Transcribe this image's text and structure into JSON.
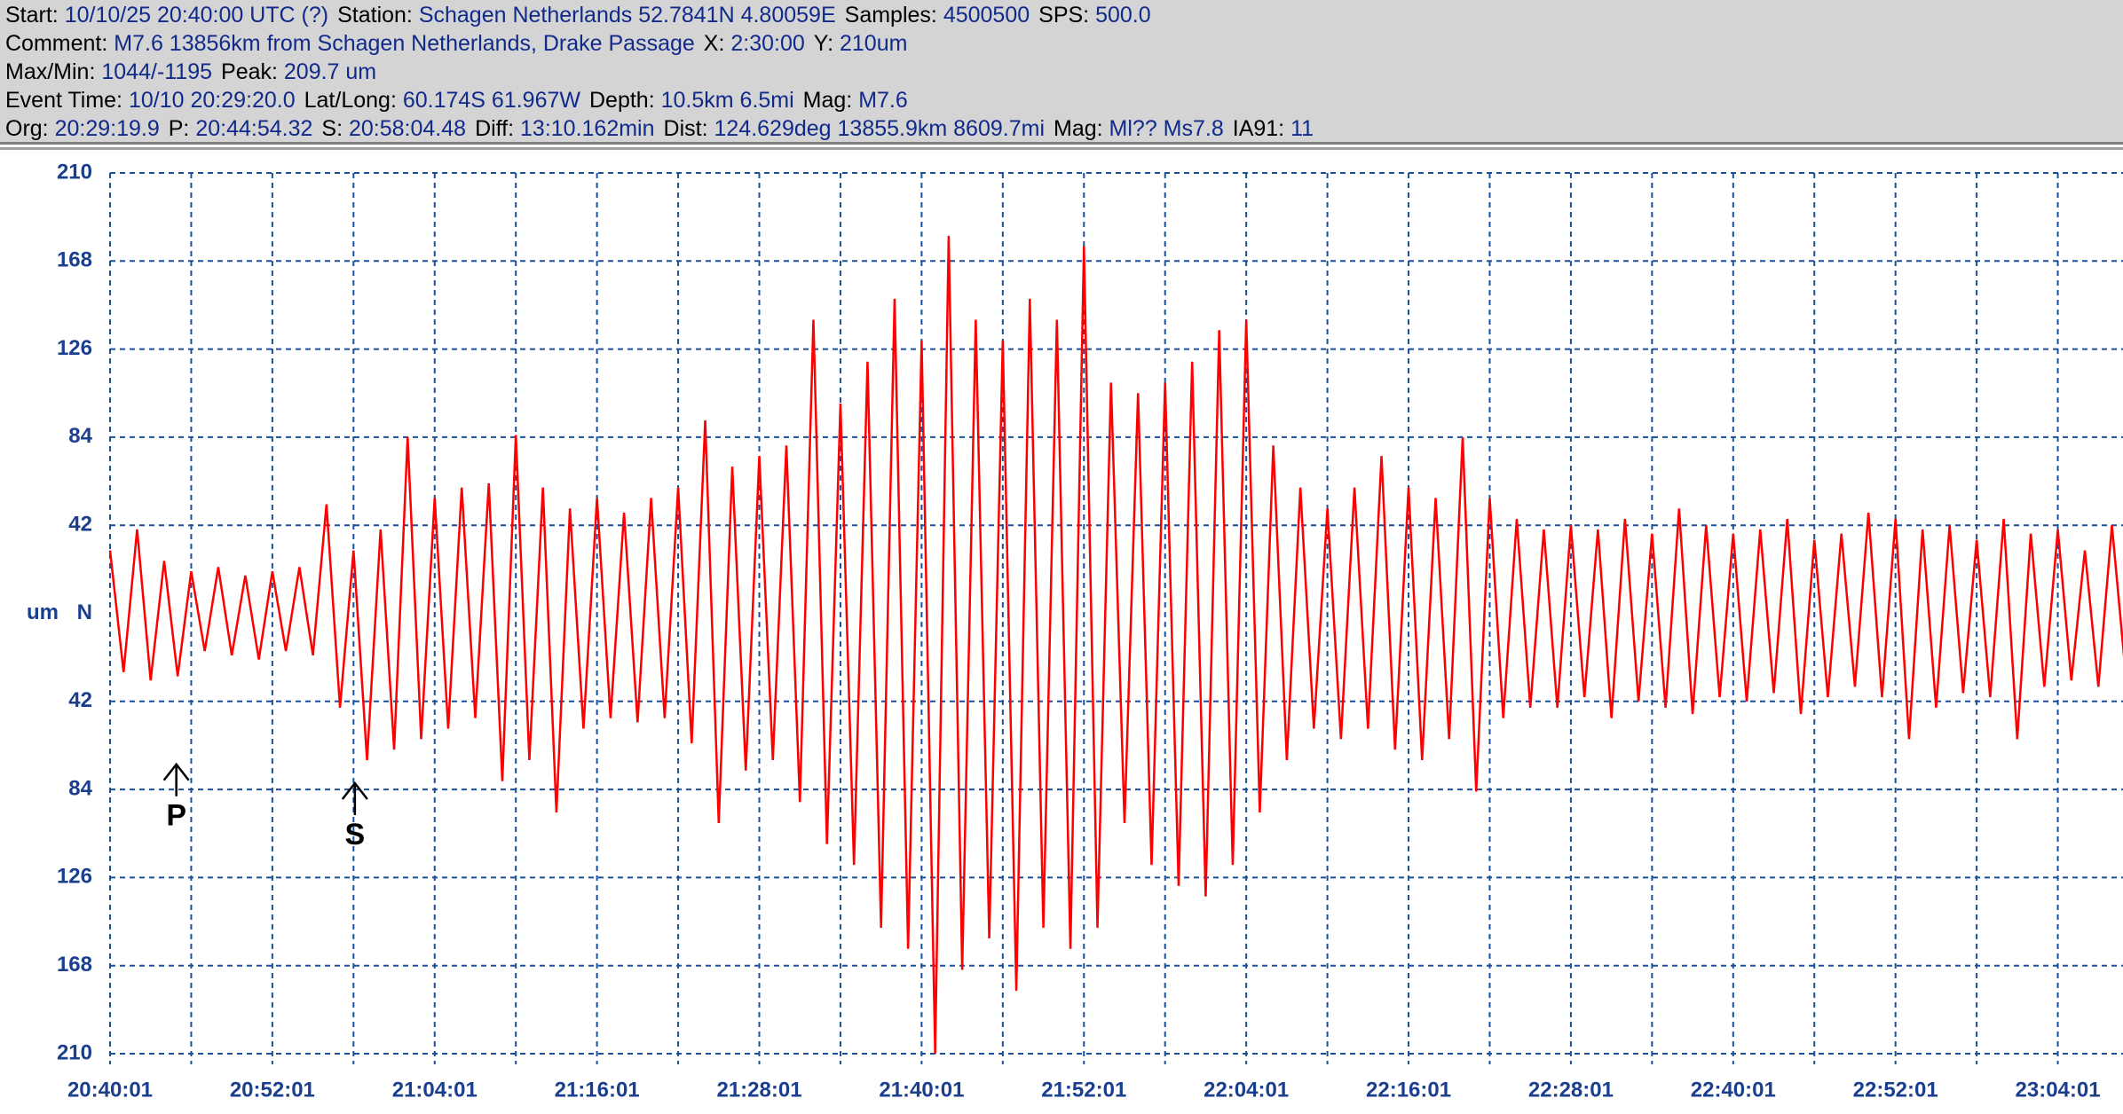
{
  "header": {
    "lines": [
      [
        "Start:",
        "10/10/25 20:40:00 UTC (?)",
        "Station:",
        "Schagen Netherlands 52.7841N 4.80059E",
        "Samples:",
        "4500500",
        "SPS:",
        "500.0"
      ],
      [
        "Comment:",
        "M7.6 13856km from Schagen Netherlands, Drake Passage",
        "X:",
        "2:30:00",
        "Y:",
        "210um"
      ],
      [
        "Max/Min:",
        "1044/-1195",
        "Peak:",
        "209.7 um"
      ],
      [
        "Event Time:",
        "10/10 20:29:20.0",
        "Lat/Long:",
        "60.174S 61.967W",
        "Depth:",
        "10.5km 6.5mi",
        "Mag:",
        "M7.6"
      ],
      [
        "Org:",
        "20:29:19.9",
        "P:",
        "20:44:54.32",
        "S:",
        "20:58:04.48",
        "Diff:",
        "13:10.162min",
        "Dist:",
        "124.629deg 13855.9km 8609.7mi",
        "Mag:",
        "Ml?? Ms7.8",
        "IA91:",
        "11"
      ]
    ]
  },
  "chart_data": {
    "type": "line",
    "y_label": "um",
    "xlim": [
      0,
      150
    ],
    "ylim": [
      -210,
      210
    ],
    "xticks": [
      {
        "value": 0,
        "label": "20:40:01"
      },
      {
        "value": 12,
        "label": "20:52:01"
      },
      {
        "value": 24,
        "label": "21:04:01"
      },
      {
        "value": 36,
        "label": "21:16:01"
      },
      {
        "value": 48,
        "label": "21:28:01"
      },
      {
        "value": 60,
        "label": "21:40:01"
      },
      {
        "value": 72,
        "label": "21:52:01"
      },
      {
        "value": 84,
        "label": "22:04:01"
      },
      {
        "value": 96,
        "label": "22:16:01"
      },
      {
        "value": 108,
        "label": "22:28:01"
      },
      {
        "value": 120,
        "label": "22:40:01"
      },
      {
        "value": 132,
        "label": "22:52:01"
      },
      {
        "value": 144,
        "label": "23:04:01"
      }
    ],
    "xminor_ticks": [
      6,
      18,
      30,
      42,
      54,
      66,
      78,
      90,
      102,
      114,
      126,
      138
    ],
    "yticks": [
      210,
      168,
      126,
      84,
      42,
      {
        "value": 0,
        "label": "N"
      },
      {
        "value": -42,
        "label": "42"
      },
      {
        "value": -84,
        "label": "84"
      },
      {
        "value": -126,
        "label": "126"
      },
      {
        "value": -168,
        "label": "168"
      },
      {
        "value": -210,
        "label": "210"
      }
    ],
    "grid": true,
    "annotations": [
      {
        "label": "P",
        "x": 4.9,
        "y": -72
      },
      {
        "label": "S",
        "x": 18.1,
        "y": -81
      }
    ],
    "x": [
      0,
      1,
      2,
      3,
      4,
      5,
      6,
      7,
      8,
      9,
      10,
      11,
      12,
      13,
      14,
      15,
      16,
      17,
      18,
      19,
      20,
      21,
      22,
      23,
      24,
      25,
      26,
      27,
      28,
      29,
      30,
      31,
      32,
      33,
      34,
      35,
      36,
      37,
      38,
      39,
      40,
      41,
      42,
      43,
      44,
      45,
      46,
      47,
      48,
      49,
      50,
      51,
      52,
      53,
      54,
      55,
      56,
      57,
      58,
      59,
      60,
      61,
      62,
      63,
      64,
      65,
      66,
      67,
      68,
      69,
      70,
      71,
      72,
      73,
      74,
      75,
      76,
      77,
      78,
      79,
      80,
      81,
      82,
      83,
      84,
      85,
      86,
      87,
      88,
      89,
      90,
      91,
      92,
      93,
      94,
      95,
      96,
      97,
      98,
      99,
      100,
      101,
      102,
      103,
      104,
      105,
      106,
      107,
      108,
      109,
      110,
      111,
      112,
      113,
      114,
      115,
      116,
      117,
      118,
      119,
      120,
      121,
      122,
      123,
      124,
      125,
      126,
      127,
      128,
      129,
      130,
      131,
      132,
      133,
      134,
      135,
      136,
      137,
      138,
      139,
      140,
      141,
      142,
      143,
      144,
      145,
      146,
      147,
      148,
      149
    ],
    "series": [
      {
        "name": "N",
        "color": "#ff0000",
        "values": [
          30,
          -28,
          40,
          -32,
          25,
          -30,
          20,
          -18,
          22,
          -20,
          18,
          -22,
          20,
          -18,
          22,
          -20,
          52,
          -45,
          30,
          -70,
          40,
          -65,
          84,
          -60,
          55,
          -55,
          60,
          -50,
          62,
          -80,
          85,
          -70,
          60,
          -95,
          50,
          -55,
          55,
          -50,
          48,
          -52,
          55,
          -50,
          60,
          -62,
          92,
          -100,
          70,
          -75,
          75,
          -70,
          80,
          -90,
          140,
          -110,
          100,
          -120,
          120,
          -150,
          150,
          -160,
          130,
          -210,
          180,
          -170,
          140,
          -155,
          130,
          -180,
          150,
          -150,
          140,
          -160,
          175,
          -150,
          110,
          -100,
          105,
          -120,
          110,
          -130,
          120,
          -135,
          135,
          -120,
          140,
          -95,
          80,
          -70,
          60,
          -55,
          50,
          -60,
          60,
          -55,
          75,
          -65,
          60,
          -70,
          55,
          -60,
          84,
          -85,
          55,
          -50,
          45,
          -45,
          40,
          -45,
          42,
          -40,
          40,
          -50,
          45,
          -42,
          38,
          -45,
          50,
          -48,
          42,
          -40,
          38,
          -42,
          40,
          -38,
          45,
          -48,
          35,
          -40,
          38,
          -35,
          48,
          -40,
          45,
          -60,
          40,
          -45,
          42,
          -38,
          35,
          -40,
          45,
          -60,
          38,
          -35,
          40,
          -32,
          30,
          -35,
          42,
          -28
        ]
      }
    ]
  }
}
